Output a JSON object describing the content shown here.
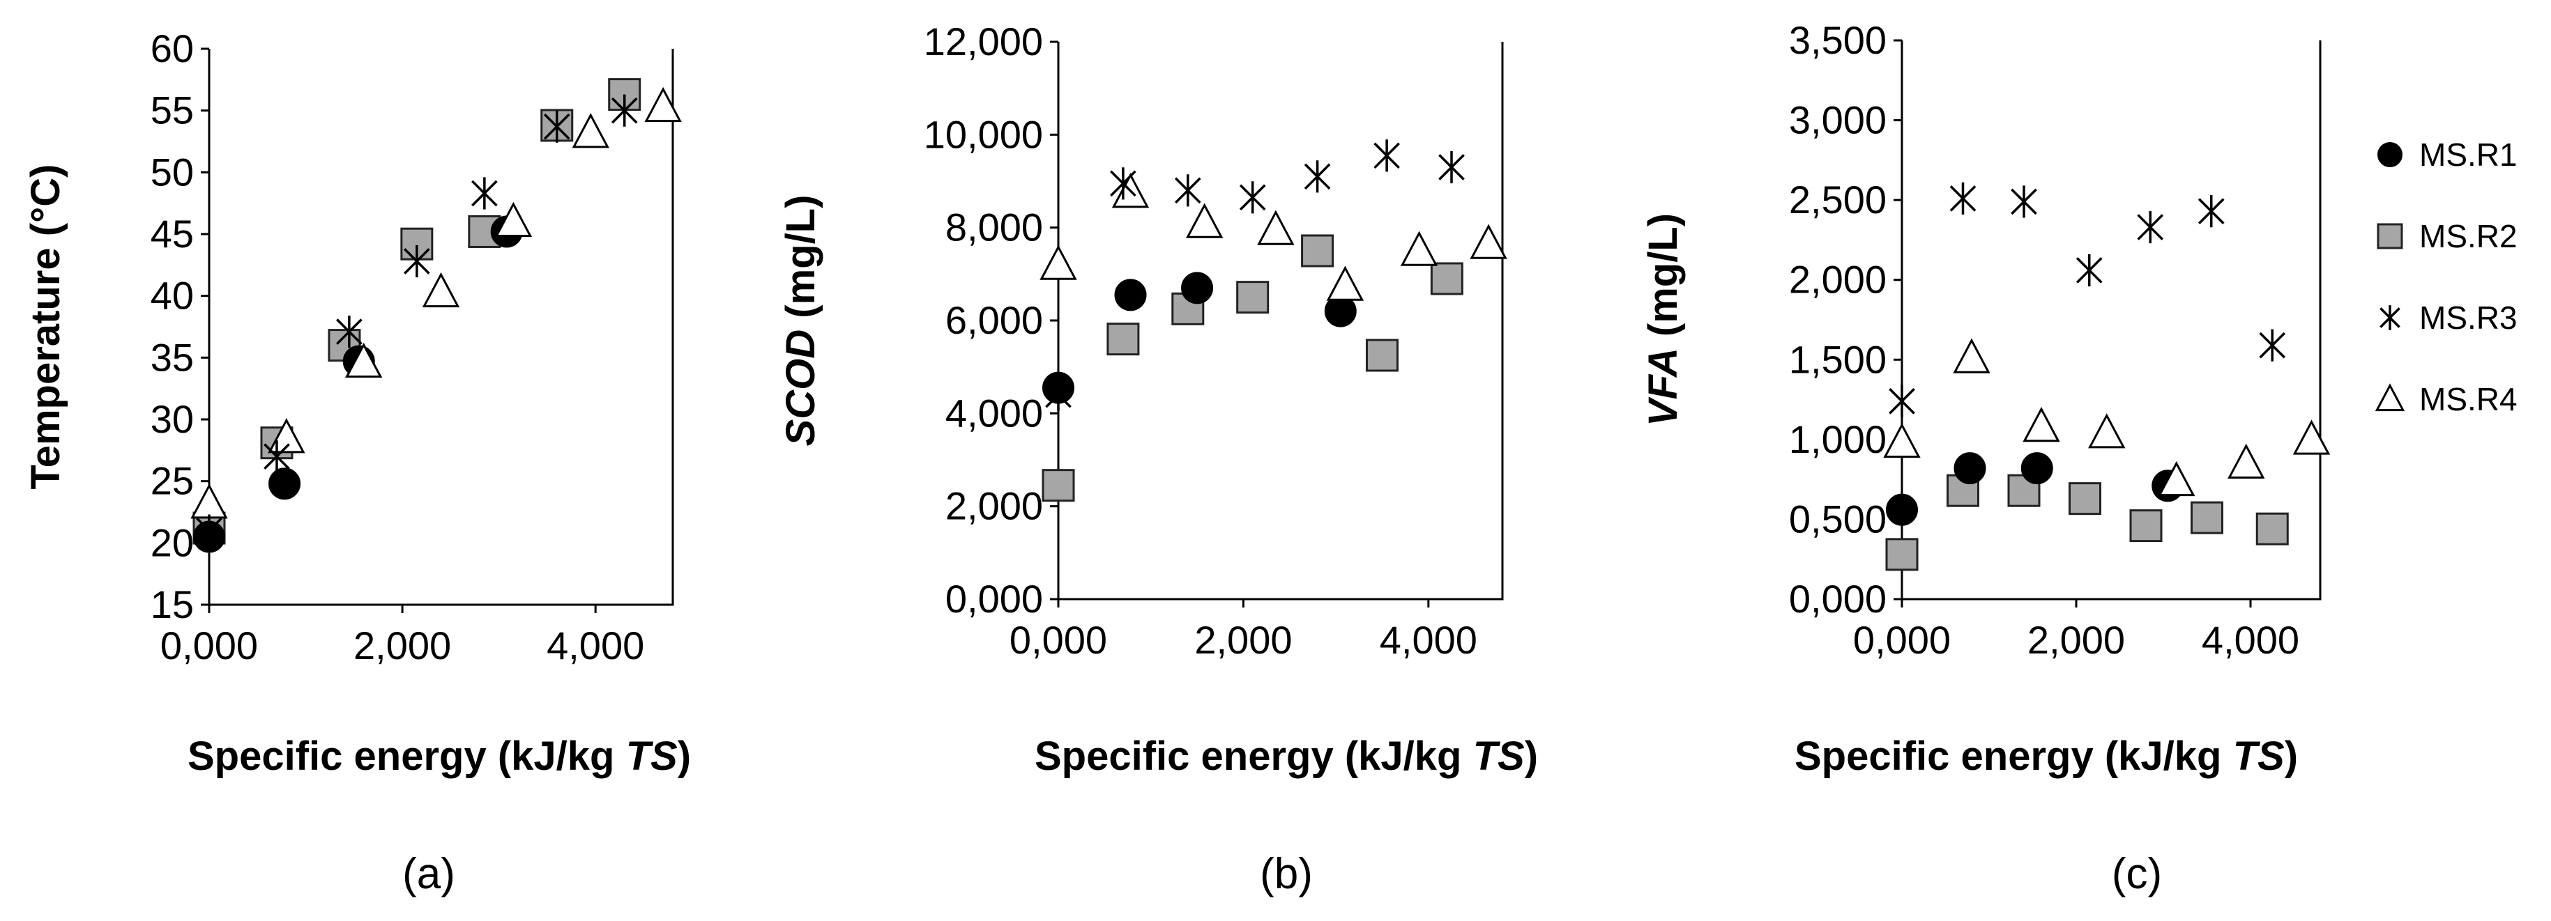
{
  "figure_panels": [
    "(a)",
    "(b)",
    "(c)"
  ],
  "legend": {
    "entries": [
      {
        "name": "MS.R1",
        "marker": "circle",
        "color": "#000000"
      },
      {
        "name": "MS.R2",
        "marker": "square",
        "color": "#a6a6a6"
      },
      {
        "name": "MS.R3",
        "marker": "star",
        "color": "#000000"
      },
      {
        "name": "MS.R4",
        "marker": "triangle",
        "color": "#ffffff"
      }
    ]
  },
  "chart_data": [
    {
      "type": "scatter",
      "panel": "(a)",
      "xlabel": "Specific energy (kJ/kg TS)",
      "xlabel_parts": [
        "Specific energy (kJ/kg ",
        "TS",
        ")"
      ],
      "ylabel": "Temperature (°C)",
      "ylabel_parts": [
        "",
        "",
        "Temperature (°C)"
      ],
      "xlim": [
        0,
        4800
      ],
      "ylim": [
        15,
        60
      ],
      "xticks": [
        0,
        2000,
        4000
      ],
      "xtick_labels": [
        "0,000",
        "2,000",
        "4,000"
      ],
      "yticks": [
        15,
        20,
        25,
        30,
        35,
        40,
        45,
        50,
        55,
        60
      ],
      "ytick_labels": [
        "15",
        "20",
        "25",
        "30",
        "35",
        "40",
        "45",
        "50",
        "55",
        "60"
      ],
      "series": [
        {
          "name": "MS.R1",
          "x": [
            0,
            780,
            1550,
            3080
          ],
          "y": [
            20.5,
            24.8,
            34.7,
            45.2
          ]
        },
        {
          "name": "MS.R2",
          "x": [
            0,
            700,
            1400,
            2150,
            2850,
            3600,
            4300
          ],
          "y": [
            21.2,
            28.1,
            36.0,
            44.2,
            45.2,
            53.8,
            56.3
          ]
        },
        {
          "name": "MS.R3",
          "x": [
            0,
            700,
            1450,
            2150,
            2850,
            3600,
            4300
          ],
          "y": [
            21.0,
            27.0,
            37.1,
            42.8,
            48.3,
            53.7,
            55.0
          ]
        },
        {
          "name": "MS.R4",
          "x": [
            0,
            800,
            1600,
            2400,
            3150,
            3950,
            4700
          ],
          "y": [
            23.2,
            28.5,
            34.6,
            40.3,
            46.0,
            53.2,
            55.3
          ]
        }
      ]
    },
    {
      "type": "scatter",
      "panel": "(b)",
      "xlabel": "Specific energy (kJ/kg TS)",
      "xlabel_parts": [
        "Specific energy (kJ/kg ",
        "TS",
        ")"
      ],
      "ylabel": "SCOD (mg/L)",
      "ylabel_parts": [
        "",
        "SCOD",
        " (mg/L)"
      ],
      "xlim": [
        0,
        4800
      ],
      "ylim": [
        0,
        12000
      ],
      "xticks": [
        0,
        2000,
        4000
      ],
      "xtick_labels": [
        "0,000",
        "2,000",
        "4,000"
      ],
      "yticks": [
        0,
        2000,
        4000,
        6000,
        8000,
        10000,
        12000
      ],
      "ytick_labels": [
        "0,000",
        "2,000",
        "4,000",
        "6,000",
        "8,000",
        "10,000",
        "12,000"
      ],
      "series": [
        {
          "name": "MS.R1",
          "x": [
            0,
            780,
            1500,
            3050
          ],
          "y": [
            4550,
            6550,
            6700,
            6200
          ]
        },
        {
          "name": "MS.R2",
          "x": [
            0,
            700,
            1400,
            2100,
            2800,
            3500,
            4200
          ],
          "y": [
            2450,
            5600,
            6250,
            6500,
            7500,
            5250,
            6900
          ]
        },
        {
          "name": "MS.R3",
          "x": [
            0,
            700,
            1400,
            2100,
            2800,
            3550,
            4250
          ],
          "y": [
            4400,
            8950,
            8800,
            8650,
            9100,
            9550,
            9300
          ]
        },
        {
          "name": "MS.R4",
          "x": [
            0,
            780,
            1580,
            2350,
            3100,
            3900,
            4650
          ],
          "y": [
            7200,
            8750,
            8100,
            7950,
            6750,
            7500,
            7650
          ]
        }
      ]
    },
    {
      "type": "scatter",
      "panel": "(c)",
      "xlabel": "Specific energy (kJ/kg TS)",
      "xlabel_parts": [
        "Specific energy (kJ/kg ",
        "TS",
        ")"
      ],
      "ylabel": "VFA (mg/L)",
      "ylabel_parts": [
        "",
        "VFA",
        " (mg/L)"
      ],
      "xlim": [
        0,
        4800
      ],
      "ylim": [
        0,
        3500
      ],
      "xticks": [
        0,
        2000,
        4000
      ],
      "xtick_labels": [
        "0,000",
        "2,000",
        "4,000"
      ],
      "yticks": [
        0,
        500,
        1000,
        1500,
        2000,
        2500,
        3000,
        3500
      ],
      "ytick_labels": [
        "0,000",
        "0,500",
        "1,000",
        "1,500",
        "2,000",
        "2,500",
        "3,000",
        "3,500"
      ],
      "series": [
        {
          "name": "MS.R1",
          "x": [
            0,
            780,
            1550,
            3050
          ],
          "y": [
            560,
            820,
            820,
            710
          ]
        },
        {
          "name": "MS.R2",
          "x": [
            0,
            700,
            1400,
            2100,
            2800,
            3500,
            4250
          ],
          "y": [
            280,
            680,
            680,
            630,
            460,
            510,
            440
          ]
        },
        {
          "name": "MS.R3",
          "x": [
            0,
            700,
            1400,
            2150,
            2850,
            3550,
            4250
          ],
          "y": [
            1240,
            2510,
            2490,
            2060,
            2330,
            2430,
            1590
          ]
        },
        {
          "name": "MS.R4",
          "x": [
            0,
            800,
            1600,
            2350,
            3150,
            3950,
            4700
          ],
          "y": [
            980,
            1510,
            1080,
            1040,
            740,
            850,
            1000
          ]
        }
      ]
    }
  ]
}
